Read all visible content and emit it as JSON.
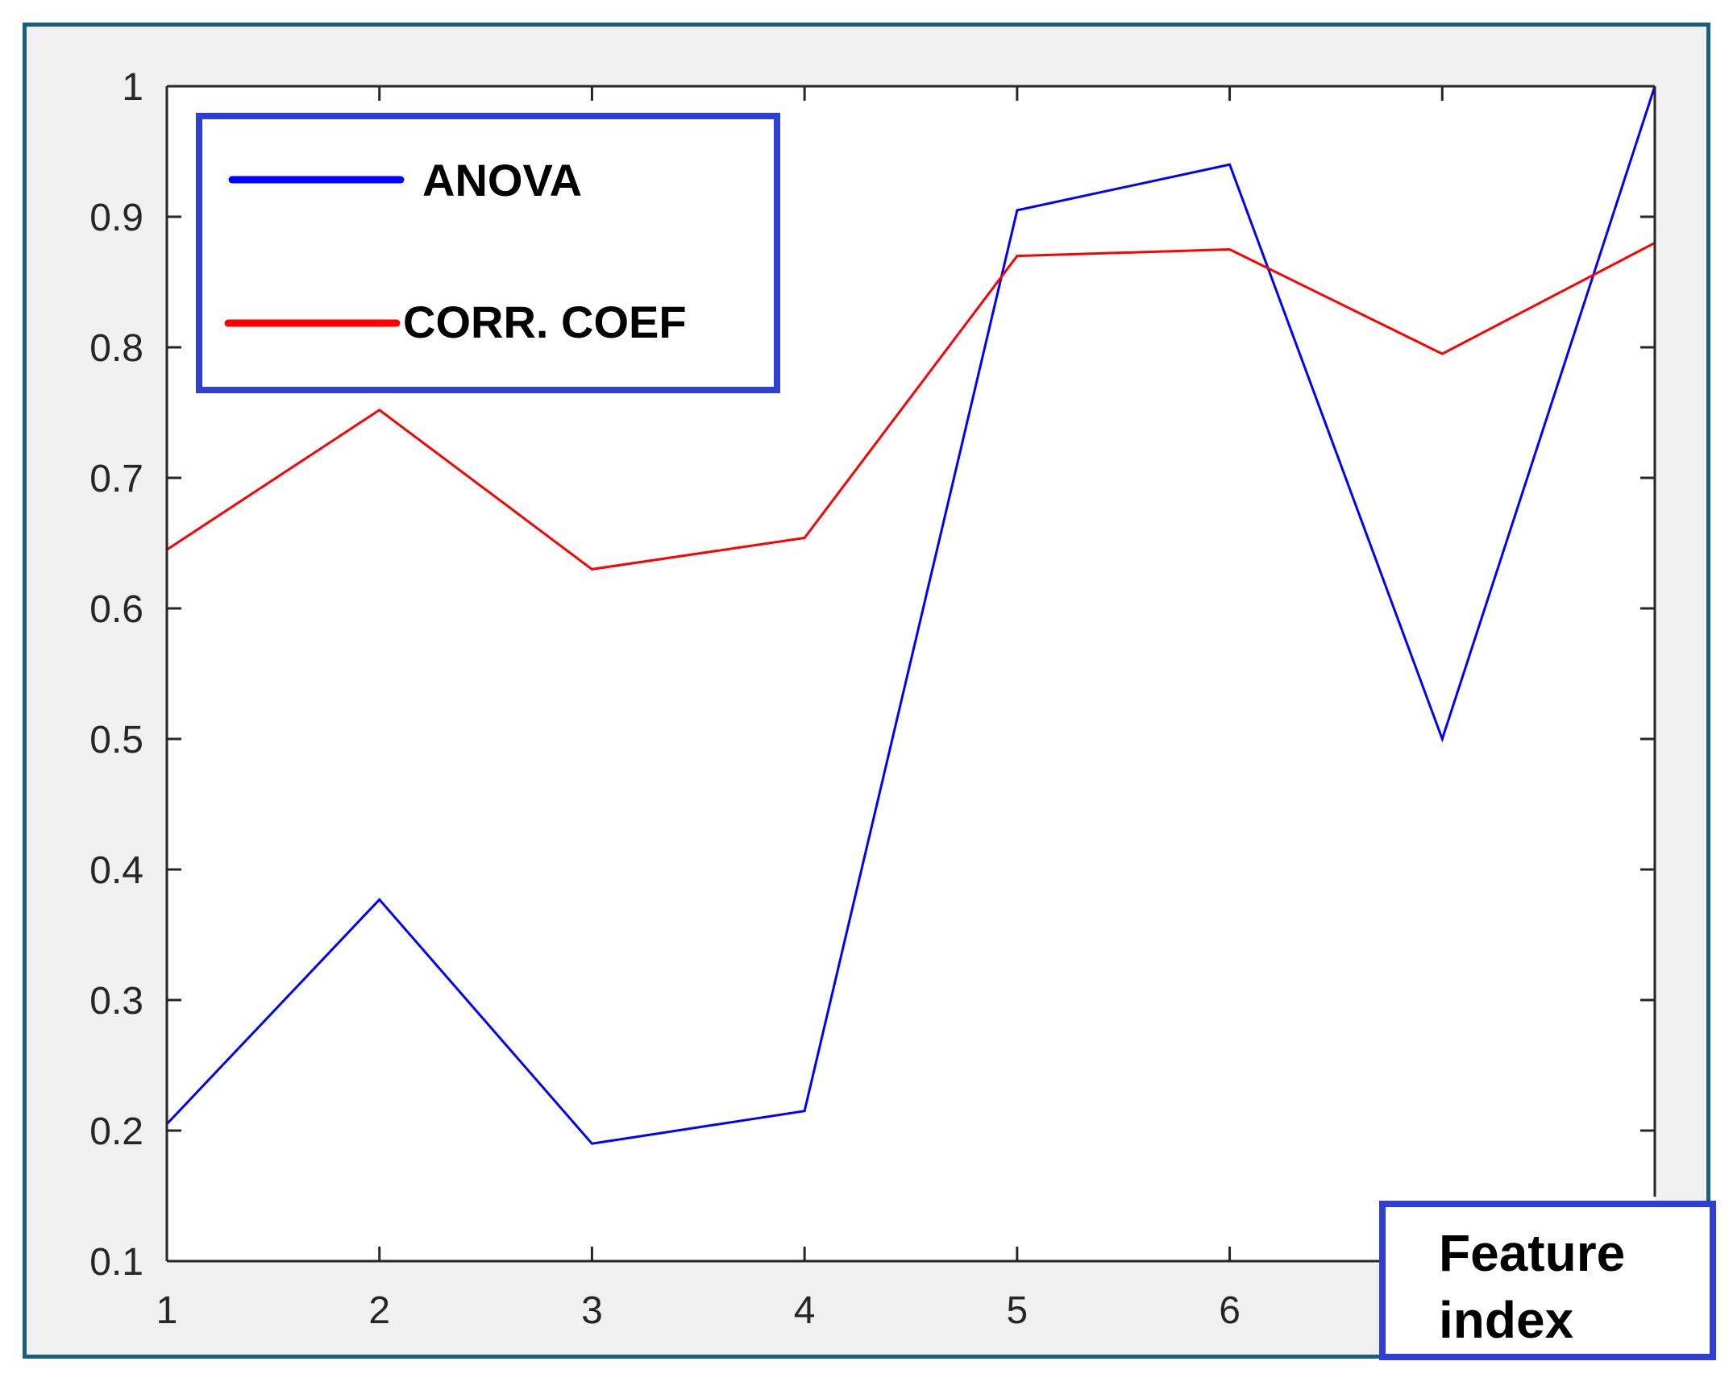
{
  "chart_data": {
    "type": "line",
    "x": [
      1,
      2,
      3,
      4,
      5,
      6,
      7,
      8
    ],
    "xticks": [
      "1",
      "2",
      "3",
      "4",
      "5",
      "6"
    ],
    "yticks": [
      "0.1",
      "0.2",
      "0.3",
      "0.4",
      "0.5",
      "0.6",
      "0.7",
      "0.8",
      "0.9",
      "1"
    ],
    "xlim": [
      1,
      8
    ],
    "ylim": [
      0.1,
      1
    ],
    "series": [
      {
        "name": "ANOVA",
        "color": "#0000ff",
        "values": [
          0.205,
          0.377,
          0.19,
          0.215,
          0.905,
          0.94,
          0.5,
          1.0
        ]
      },
      {
        "name": "CORR. COEF",
        "color": "#ff0000",
        "values": [
          0.645,
          0.752,
          0.63,
          0.654,
          0.87,
          0.875,
          0.795,
          0.88
        ]
      }
    ],
    "xlabel": "Feature index",
    "xlabel_lines": [
      "Feature",
      "index"
    ],
    "ylabel": "",
    "title": "",
    "grid": false,
    "legend_position": "top-left",
    "legend_border_color": "#2f3fd6",
    "axis_color": "#262626"
  }
}
